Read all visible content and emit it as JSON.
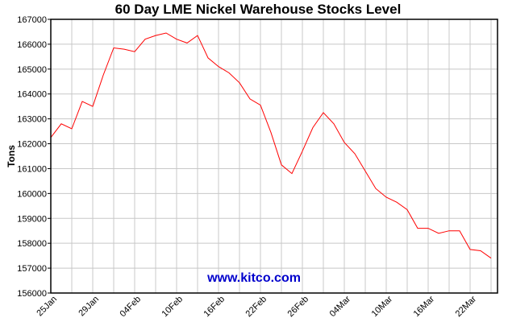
{
  "chart_data": {
    "type": "line",
    "title": "60 Day LME Nickel Warehouse Stocks Level",
    "xlabel": "",
    "ylabel": "Tons",
    "ylim": [
      156000,
      167000
    ],
    "yticks": [
      156000,
      157000,
      158000,
      159000,
      160000,
      161000,
      162000,
      163000,
      164000,
      165000,
      166000,
      167000
    ],
    "xtick_labels": [
      "25Jan",
      "29Jan",
      "04Feb",
      "10Feb",
      "16Feb",
      "22Feb",
      "26Feb",
      "04Mar",
      "10Mar",
      "16Mar",
      "22Mar"
    ],
    "grid": true,
    "legend": null,
    "watermark": "www.kitco.com",
    "colors": {
      "line": "#ff0000",
      "grid": "#c8c8c8",
      "watermark": "#0000cc"
    },
    "series": [
      {
        "name": "LME Nickel Warehouse Stocks",
        "values": [
          162250,
          162800,
          162600,
          163700,
          163500,
          164750,
          165850,
          165800,
          165700,
          166200,
          166350,
          166450,
          166200,
          166050,
          166350,
          165450,
          165100,
          164850,
          164450,
          163800,
          163550,
          162450,
          161150,
          160800,
          161700,
          162650,
          163250,
          162800,
          162050,
          161600,
          160900,
          160200,
          159850,
          159650,
          159350,
          158600,
          158600,
          158400,
          158500,
          158500,
          157750,
          157700,
          157400
        ]
      }
    ]
  }
}
